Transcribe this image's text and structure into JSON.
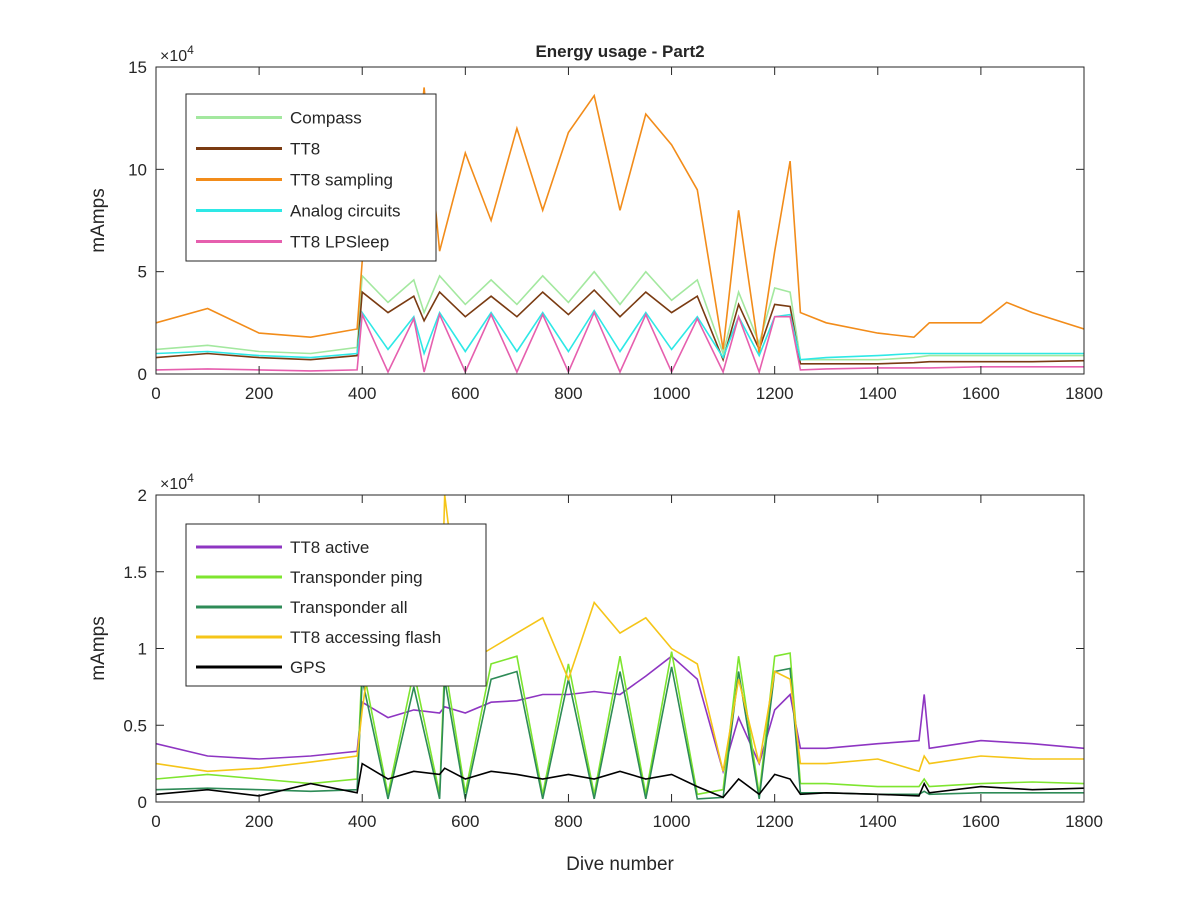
{
  "figure": {
    "title": "Energy usage - Part2",
    "xlabel": "Dive number",
    "exponent_base": "×10",
    "exponent_power": "4"
  },
  "chart_data": [
    {
      "type": "line",
      "title": "Energy usage - Part2",
      "xlabel": "",
      "ylabel": "mAmps",
      "xlim": [
        0,
        1800
      ],
      "ylim": [
        0,
        150000
      ],
      "y_exponent": 4,
      "xticks": [
        "0",
        "200",
        "400",
        "600",
        "800",
        "1000",
        "1200",
        "1400",
        "1600",
        "1800"
      ],
      "yticks": [
        "0",
        "5",
        "10",
        "15"
      ],
      "grid": false,
      "legend_position": "top-left",
      "x": [
        0,
        100,
        200,
        300,
        390,
        400,
        450,
        500,
        520,
        550,
        600,
        650,
        700,
        750,
        800,
        850,
        900,
        950,
        1000,
        1050,
        1100,
        1130,
        1170,
        1200,
        1230,
        1250,
        1300,
        1400,
        1470,
        1500,
        1600,
        1650,
        1700,
        1800
      ],
      "series": [
        {
          "name": "Compass",
          "color": "#a3e89f",
          "values": [
            12000,
            14000,
            11000,
            10000,
            13000,
            48000,
            35000,
            46000,
            30000,
            48000,
            34000,
            46000,
            34000,
            48000,
            35000,
            50000,
            34000,
            50000,
            36000,
            46000,
            10000,
            40000,
            15000,
            42000,
            40000,
            7000,
            7000,
            7000,
            8000,
            9000,
            9000,
            9000,
            9000,
            9000
          ]
        },
        {
          "name": "TT8",
          "color": "#7a3b12",
          "values": [
            8000,
            10000,
            8000,
            7000,
            9000,
            40000,
            30000,
            38000,
            26000,
            40000,
            28000,
            38000,
            28000,
            40000,
            29000,
            41000,
            28000,
            40000,
            30000,
            38000,
            7000,
            34000,
            12000,
            34000,
            33000,
            5000,
            5000,
            5000,
            5500,
            6000,
            6000,
            6000,
            6000,
            6500
          ]
        },
        {
          "name": "TT8 sampling",
          "color": "#f28c1a",
          "values": [
            25000,
            32000,
            20000,
            18000,
            22000,
            55000,
            70000,
            85000,
            140000,
            60000,
            108000,
            75000,
            120000,
            80000,
            118000,
            136000,
            80000,
            127000,
            112000,
            90000,
            12000,
            80000,
            10000,
            60000,
            104000,
            30000,
            25000,
            20000,
            18000,
            25000,
            25000,
            35000,
            30000,
            22000
          ]
        },
        {
          "name": "Analog circuits",
          "color": "#2ee8e6",
          "values": [
            10000,
            11000,
            9000,
            8000,
            10000,
            30000,
            12000,
            28000,
            10000,
            30000,
            11000,
            30000,
            11000,
            30000,
            11000,
            31000,
            11000,
            30000,
            12000,
            28000,
            8000,
            28000,
            9000,
            28000,
            29000,
            7000,
            8000,
            9000,
            10000,
            10000,
            10000,
            10000,
            10000,
            10000
          ]
        },
        {
          "name": "TT8 LPSleep",
          "color": "#e65fae",
          "values": [
            2000,
            2500,
            2000,
            1500,
            2000,
            29000,
            1000,
            27000,
            1000,
            29000,
            1000,
            29000,
            1000,
            29000,
            1000,
            30000,
            1000,
            29000,
            1000,
            27000,
            1000,
            28000,
            1000,
            28000,
            28000,
            2000,
            2500,
            3000,
            3000,
            3000,
            3500,
            3500,
            3500,
            3500
          ]
        }
      ]
    },
    {
      "type": "line",
      "title": "",
      "xlabel": "Dive number",
      "ylabel": "mAmps",
      "xlim": [
        0,
        1800
      ],
      "ylim": [
        0,
        20000
      ],
      "y_exponent": 4,
      "xticks": [
        "0",
        "200",
        "400",
        "600",
        "800",
        "1000",
        "1200",
        "1400",
        "1600",
        "1800"
      ],
      "yticks": [
        "0",
        "0.5",
        "1",
        "1.5",
        "2"
      ],
      "grid": false,
      "legend_position": "top-left",
      "x": [
        0,
        100,
        200,
        300,
        390,
        400,
        450,
        500,
        550,
        560,
        600,
        650,
        700,
        750,
        800,
        850,
        900,
        950,
        1000,
        1050,
        1100,
        1130,
        1170,
        1200,
        1230,
        1250,
        1300,
        1400,
        1480,
        1490,
        1500,
        1600,
        1700,
        1800
      ],
      "series": [
        {
          "name": "TT8 active",
          "color": "#8e35c2",
          "values": [
            3800,
            3000,
            2800,
            3000,
            3300,
            6500,
            5500,
            6000,
            5800,
            6200,
            5800,
            6500,
            6600,
            7000,
            7000,
            7200,
            7000,
            8200,
            9500,
            8000,
            2000,
            5500,
            2500,
            6000,
            7000,
            3500,
            3500,
            3800,
            4000,
            7000,
            3500,
            4000,
            3800,
            3500
          ]
        },
        {
          "name": "Transponder ping",
          "color": "#7ee52f",
          "values": [
            1500,
            1800,
            1500,
            1200,
            1500,
            9000,
            500,
            8500,
            500,
            9000,
            600,
            9000,
            9500,
            500,
            9000,
            500,
            9500,
            500,
            9800,
            500,
            800,
            9500,
            500,
            9500,
            9700,
            1200,
            1200,
            1000,
            1000,
            1500,
            1000,
            1200,
            1300,
            1200
          ]
        },
        {
          "name": "Transponder all",
          "color": "#2e8b57",
          "values": [
            800,
            900,
            800,
            700,
            800,
            8000,
            200,
            7500,
            200,
            8000,
            200,
            8000,
            8500,
            200,
            8000,
            200,
            8500,
            200,
            8800,
            200,
            300,
            8500,
            200,
            8500,
            8700,
            600,
            600,
            500,
            500,
            700,
            500,
            600,
            600,
            600
          ]
        },
        {
          "name": "TT8 accessing flash",
          "color": "#f5c518",
          "values": [
            2500,
            2000,
            2200,
            2600,
            3000,
            6000,
            18000,
            10000,
            8000,
            20000,
            9000,
            10000,
            11000,
            12000,
            8000,
            13000,
            11000,
            12000,
            10000,
            9000,
            2000,
            8000,
            2500,
            8500,
            8000,
            2500,
            2500,
            2800,
            2000,
            3000,
            2500,
            3000,
            2800,
            2800
          ]
        },
        {
          "name": "GPS",
          "color": "#000000",
          "values": [
            500,
            800,
            400,
            1200,
            600,
            2500,
            1500,
            2000,
            1800,
            2200,
            1500,
            2000,
            1800,
            1500,
            1800,
            1500,
            2000,
            1500,
            1800,
            1000,
            300,
            1500,
            500,
            1800,
            1500,
            500,
            600,
            500,
            400,
            1200,
            600,
            1000,
            800,
            900
          ]
        }
      ]
    }
  ]
}
